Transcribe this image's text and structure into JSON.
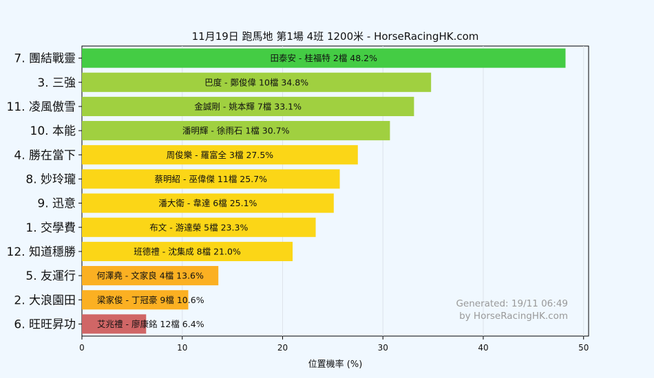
{
  "chart_data": {
    "type": "bar",
    "orientation": "horizontal",
    "title": "11月19日  跑馬地  第1場  4班  1200米 - HorseRacingHK.com",
    "xlabel": "位置機率 (%)",
    "ylabel": "",
    "xlim": [
      0,
      50.5
    ],
    "xticks": [
      0,
      10,
      20,
      30,
      40,
      50
    ],
    "grid": "vertical",
    "categories": [
      "7. 團結戰靈",
      "3. 三強",
      "11. 凌風傲雪",
      "10. 本能",
      "4. 勝在當下",
      "8. 妙玲瓏",
      "9. 迅意",
      "1. 交學費",
      "12. 知道穩勝",
      "5. 友運行",
      "2. 大浪園田",
      "6. 旺旺昇功"
    ],
    "values": [
      48.2,
      34.8,
      33.1,
      30.7,
      27.5,
      25.7,
      25.1,
      23.3,
      21.0,
      13.6,
      10.6,
      6.4
    ],
    "bar_labels": [
      "田泰安 - 桂福特 2檔  48.2%",
      "巴度 - 鄭俊偉 10檔  34.8%",
      "金誠剛 - 姚本輝 7檔  33.1%",
      "潘明輝 - 徐雨石 1檔  30.7%",
      "周俊樂 - 羅富全 3檔  27.5%",
      "蔡明紹 - 巫偉傑 11檔  25.7%",
      "潘大衛 - 韋達 6檔  25.1%",
      "布文 - 游達榮 5檔  23.3%",
      "班德禮 - 沈集成 8檔  21.0%",
      "何澤堯 - 文家良 4檔  13.6%",
      "梁家俊 - 丁冠豪 9檔  10.6%",
      "艾兆禮 - 廖康銘 12檔  6.4%"
    ],
    "colors": [
      "#44cc44",
      "#a0d040",
      "#a0d040",
      "#a0d040",
      "#fbd617",
      "#fbd617",
      "#fbd617",
      "#fbd617",
      "#fbd617",
      "#fbb022",
      "#fbb022",
      "#d06666"
    ]
  },
  "watermark": {
    "line1": "Generated: 19/11 06:49",
    "line2": "by HorseRacingHK.com"
  }
}
